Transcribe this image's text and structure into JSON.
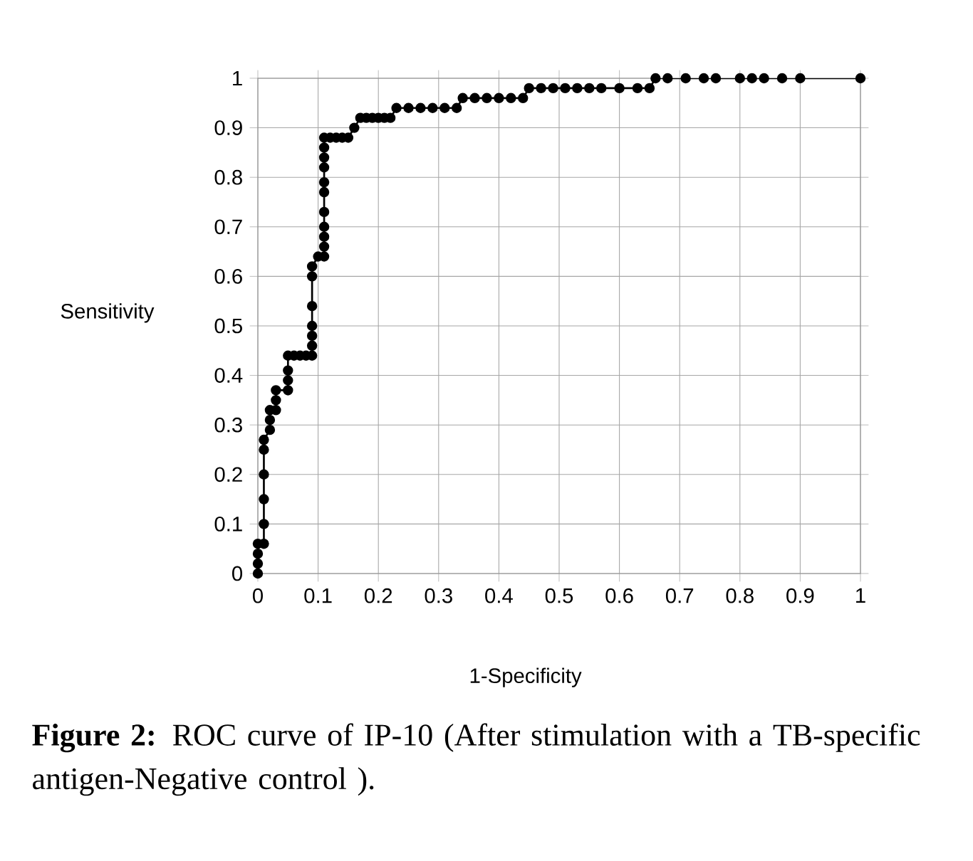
{
  "chart_data": {
    "type": "line",
    "xlabel": "1-Specificity",
    "ylabel": "Sensitivity",
    "annotations": [
      "**Figure 2:** ROC curve of IP-10 (After stimulation with a TB-specific antigen-Negative control )."
    ],
    "xlim": [
      0,
      1
    ],
    "ylim": [
      0,
      1
    ],
    "xticks": [
      0,
      0.1,
      0.2,
      0.3,
      0.4,
      0.5,
      0.6,
      0.7,
      0.8,
      0.9,
      1
    ],
    "yticks": [
      0,
      0.1,
      0.2,
      0.3,
      0.4,
      0.5,
      0.6,
      0.7,
      0.8,
      0.9,
      1
    ],
    "grid": true,
    "marker": "circle",
    "line_style": "solid",
    "series": [
      {
        "color": "#000000",
        "x": [
          0,
          0,
          0,
          0,
          0.01,
          0.01,
          0.01,
          0.01,
          0.01,
          0.01,
          0.02,
          0.02,
          0.02,
          0.03,
          0.03,
          0.03,
          0.05,
          0.05,
          0.05,
          0.05,
          0.06,
          0.07,
          0.08,
          0.09,
          0.09,
          0.09,
          0.09,
          0.09,
          0.09,
          0.09,
          0.1,
          0.11,
          0.11,
          0.11,
          0.11,
          0.11,
          0.11,
          0.11,
          0.11,
          0.11,
          0.11,
          0.11,
          0.12,
          0.13,
          0.14,
          0.15,
          0.16,
          0.17,
          0.18,
          0.19,
          0.2,
          0.21,
          0.22,
          0.23,
          0.25,
          0.27,
          0.29,
          0.31,
          0.33,
          0.34,
          0.36,
          0.38,
          0.4,
          0.42,
          0.44,
          0.45,
          0.47,
          0.49,
          0.51,
          0.53,
          0.55,
          0.57,
          0.6,
          0.63,
          0.65,
          0.66,
          0.68,
          0.71,
          0.74,
          0.76,
          0.8,
          0.82,
          0.84,
          0.87,
          0.9,
          1
        ],
        "values": [
          0,
          0.02,
          0.04,
          0.06,
          0.06,
          0.1,
          0.15,
          0.2,
          0.25,
          0.27,
          0.29,
          0.31,
          0.33,
          0.33,
          0.35,
          0.37,
          0.37,
          0.39,
          0.41,
          0.44,
          0.44,
          0.44,
          0.44,
          0.44,
          0.46,
          0.48,
          0.5,
          0.54,
          0.6,
          0.62,
          0.64,
          0.64,
          0.66,
          0.68,
          0.7,
          0.73,
          0.77,
          0.79,
          0.82,
          0.84,
          0.86,
          0.88,
          0.88,
          0.88,
          0.88,
          0.88,
          0.9,
          0.92,
          0.92,
          0.92,
          0.92,
          0.92,
          0.92,
          0.94,
          0.94,
          0.94,
          0.94,
          0.94,
          0.94,
          0.96,
          0.96,
          0.96,
          0.96,
          0.96,
          0.96,
          0.98,
          0.98,
          0.98,
          0.98,
          0.98,
          0.98,
          0.98,
          0.98,
          0.98,
          0.98,
          1,
          1,
          1,
          1,
          1,
          1,
          1,
          1,
          1,
          1,
          1
        ]
      }
    ]
  }
}
